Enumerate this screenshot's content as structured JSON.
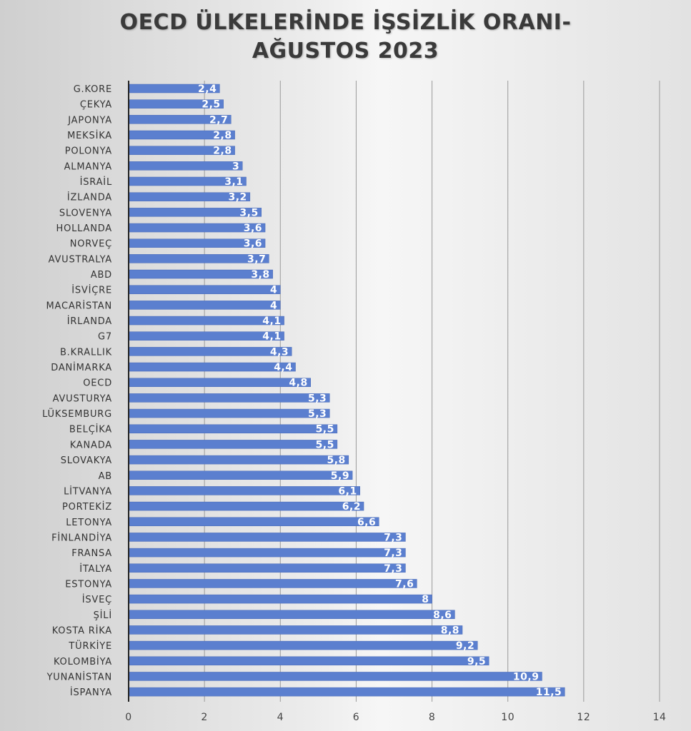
{
  "chart_data": {
    "type": "bar",
    "orientation": "horizontal",
    "title_lines": [
      "OECD ÜLKELERİNDE İŞSİZLİK ORANI-",
      "AĞUSTOS 2023"
    ],
    "categories": [
      "G.KORE",
      "ÇEKYA",
      "JAPONYA",
      "MEKSİKA",
      "POLONYA",
      "ALMANYA",
      "İSRAİL",
      "İZLANDA",
      "SLOVENYA",
      "HOLLANDA",
      "NORVEÇ",
      "AVUSTRALYA",
      "ABD",
      "İSVİÇRE",
      "MACARİSTAN",
      "İRLANDA",
      "G7",
      "B.KRALLIK",
      "DANİMARKA",
      "OECD",
      "AVUSTURYA",
      "LÜKSEMBURG",
      "BELÇİKA",
      "KANADA",
      "SLOVAKYA",
      "AB",
      "LİTVANYA",
      "PORTEKİZ",
      "LETONYA",
      "FİNLANDİYA",
      "FRANSA",
      "İTALYA",
      "ESTONYA",
      "İSVEÇ",
      "ŞİLİ",
      "KOSTA RİKA",
      "TÜRKİYE",
      "KOLOMBİYA",
      "YUNANİSTAN",
      "İSPANYA"
    ],
    "values": [
      2.4,
      2.5,
      2.7,
      2.8,
      2.8,
      3,
      3.1,
      3.2,
      3.5,
      3.6,
      3.6,
      3.7,
      3.8,
      4,
      4,
      4.1,
      4.1,
      4.3,
      4.4,
      4.8,
      5.3,
      5.3,
      5.5,
      5.5,
      5.8,
      5.9,
      6.1,
      6.2,
      6.6,
      7.3,
      7.3,
      7.3,
      7.6,
      8,
      8.6,
      8.8,
      9.2,
      9.5,
      10.9,
      11.5
    ],
    "data_labels": [
      "2,4",
      "2,5",
      "2,7",
      "2,8",
      "2,8",
      "3",
      "3,1",
      "3,2",
      "3,5",
      "3,6",
      "3,6",
      "3,7",
      "3,8",
      "4",
      "4",
      "4,1",
      "4,1",
      "4,3",
      "4,4",
      "4,8",
      "5,3",
      "5,3",
      "5,5",
      "5,5",
      "5,8",
      "5,9",
      "6,1",
      "6,2",
      "6,6",
      "7,3",
      "7,3",
      "7,3",
      "7,6",
      "8",
      "8,6",
      "8,8",
      "9,2",
      "9,5",
      "10,9",
      "11,5"
    ],
    "x_ticks": [
      "0",
      "2",
      "4",
      "6",
      "8",
      "10",
      "12",
      "14"
    ],
    "xlim": [
      0,
      14
    ],
    "grid": "vertical",
    "legend": "none",
    "bar_color": "#5b7fcf"
  }
}
